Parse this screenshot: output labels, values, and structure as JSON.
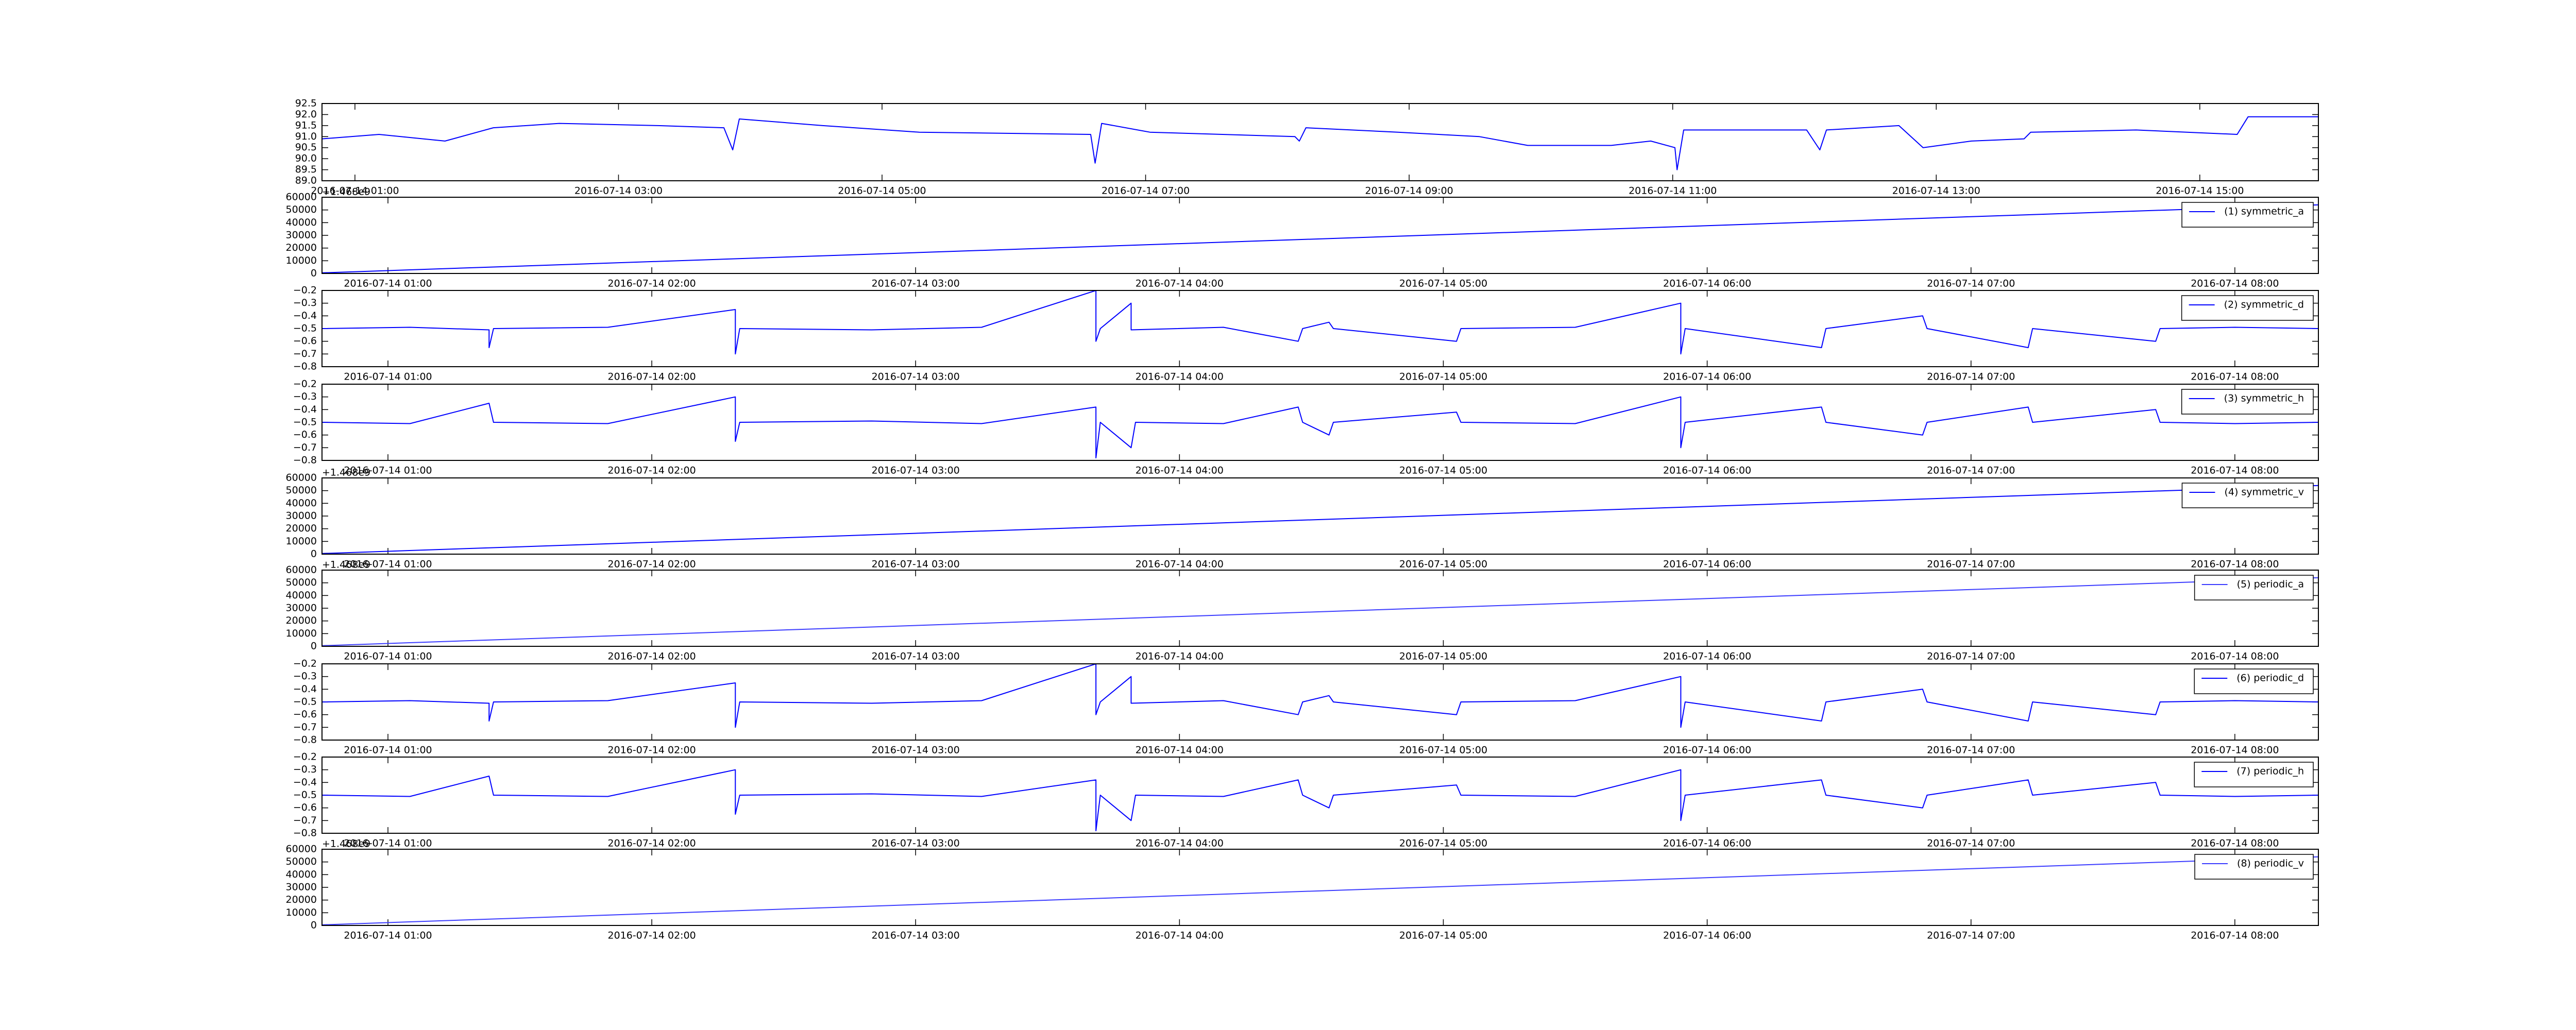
{
  "chart_data": [
    {
      "type": "line",
      "xlim": [
        "2016-07-14 00:45",
        "2016-07-14 15:54"
      ],
      "xticks": [
        "2016-07-14 01:00",
        "2016-07-14 03:00",
        "2016-07-14 05:00",
        "2016-07-14 07:00",
        "2016-07-14 09:00",
        "2016-07-14 11:00",
        "2016-07-14 13:00",
        "2016-07-14 15:00"
      ],
      "ylim": [
        89,
        92.5
      ],
      "yticks": [
        {
          "value": 89,
          "label": "89.0"
        },
        89.5,
        {
          "value": 90,
          "label": "90.0"
        },
        90.5,
        {
          "value": 91,
          "label": "91.0"
        },
        91.5,
        {
          "value": 92,
          "label": "92.0"
        },
        92.5
      ],
      "series": [
        {
          "color": "#0000ff",
          "x": [
            "2016-07-14 00:45",
            "2016-07-14 01:11",
            "2016-07-14 01:41",
            "2016-07-14 02:03",
            "2016-07-14 02:33",
            "2016-07-14 03:18",
            "2016-07-14 03:48",
            "2016-07-14 03:52",
            "2016-07-14 03:55",
            "2016-07-14 04:33",
            "2016-07-14 05:17",
            "2016-07-14 06:35",
            "2016-07-14 06:37",
            "2016-07-14 06:40",
            "2016-07-14 07:02",
            "2016-07-14 08:08",
            "2016-07-14 08:10",
            "2016-07-14 08:13",
            "2016-07-14 08:55",
            "2016-07-14 09:32",
            "2016-07-14 09:54",
            "2016-07-14 10:32",
            "2016-07-14 10:50",
            "2016-07-14 11:01",
            "2016-07-14 11:02",
            "2016-07-14 11:05",
            "2016-07-14 12:01",
            "2016-07-14 12:07",
            "2016-07-14 12:10",
            "2016-07-14 12:43",
            "2016-07-14 12:54",
            "2016-07-14 13:16",
            "2016-07-14 13:40",
            "2016-07-14 13:43",
            "2016-07-14 14:31",
            "2016-07-14 15:17",
            "2016-07-14 15:22",
            "2016-07-14 15:54"
          ],
          "values": [
            90.9,
            91.1,
            90.8,
            91.4,
            91.6,
            91.5,
            91.4,
            90.4,
            91.8,
            91.5,
            91.2,
            91.1,
            89.8,
            91.6,
            91.2,
            91.0,
            90.8,
            91.4,
            91.2,
            91.0,
            90.6,
            90.6,
            90.8,
            90.5,
            89.5,
            91.3,
            91.3,
            90.4,
            91.3,
            91.5,
            90.5,
            90.8,
            90.9,
            91.2,
            91.3,
            91.1,
            91.9,
            91.9
          ]
        }
      ]
    },
    {
      "type": "line",
      "xlim": [
        "2016-07-14 00:45",
        "2016-07-14 08:19"
      ],
      "xticks": [
        "2016-07-14 01:00",
        "2016-07-14 02:00",
        "2016-07-14 03:00",
        "2016-07-14 04:00",
        "2016-07-14 05:00",
        "2016-07-14 06:00",
        "2016-07-14 07:00",
        "2016-07-14 08:00"
      ],
      "ylim": [
        0,
        60000
      ],
      "yticks": [
        0,
        10000,
        20000,
        30000,
        40000,
        50000,
        60000
      ],
      "offset_text": "+1.468e9",
      "legend": "upper right",
      "series": [
        {
          "name": "(1) symmetric_a",
          "color": "#0000ff",
          "x": [
            "2016-07-14 00:45",
            "2016-07-14 08:19"
          ],
          "values": [
            500,
            54000
          ]
        }
      ]
    },
    {
      "type": "line",
      "xlim": [
        "2016-07-14 00:45",
        "2016-07-14 08:19"
      ],
      "xticks": [
        "2016-07-14 01:00",
        "2016-07-14 02:00",
        "2016-07-14 03:00",
        "2016-07-14 04:00",
        "2016-07-14 05:00",
        "2016-07-14 06:00",
        "2016-07-14 07:00",
        "2016-07-14 08:00"
      ],
      "ylim": [
        -0.8,
        -0.2
      ],
      "yticks": [
        {
          "value": -0.8,
          "label": "−0.8"
        },
        {
          "value": -0.7,
          "label": "−0.7"
        },
        {
          "value": -0.6,
          "label": "−0.6"
        },
        {
          "value": -0.5,
          "label": "−0.5"
        },
        {
          "value": -0.4,
          "label": "−0.4"
        },
        {
          "value": -0.3,
          "label": "−0.3"
        },
        {
          "value": -0.2,
          "label": "−0.2"
        }
      ],
      "legend": "upper right",
      "series": [
        {
          "name": "(2) symmetric_d",
          "color": "#0000ff",
          "x": [
            "2016-07-14 00:45",
            "2016-07-14 01:05",
            "2016-07-14 01:23",
            "2016-07-14 01:23",
            "2016-07-14 01:24",
            "2016-07-14 01:50",
            "2016-07-14 02:19",
            "2016-07-14 02:19",
            "2016-07-14 02:20",
            "2016-07-14 02:50",
            "2016-07-14 03:15",
            "2016-07-14 03:41",
            "2016-07-14 03:41",
            "2016-07-14 03:42",
            "2016-07-14 03:49",
            "2016-07-14 03:49",
            "2016-07-14 04:10",
            "2016-07-14 04:27",
            "2016-07-14 04:28",
            "2016-07-14 04:34",
            "2016-07-14 04:35",
            "2016-07-14 05:03",
            "2016-07-14 05:04",
            "2016-07-14 05:30",
            "2016-07-14 05:54",
            "2016-07-14 05:54",
            "2016-07-14 05:55",
            "2016-07-14 06:26",
            "2016-07-14 06:27",
            "2016-07-14 06:49",
            "2016-07-14 06:50",
            "2016-07-14 07:13",
            "2016-07-14 07:14",
            "2016-07-14 07:42",
            "2016-07-14 07:43",
            "2016-07-14 08:00",
            "2016-07-14 08:19"
          ],
          "values": [
            -0.5,
            -0.49,
            -0.51,
            -0.65,
            -0.5,
            -0.49,
            -0.35,
            -0.7,
            -0.5,
            -0.51,
            -0.49,
            -0.2,
            -0.6,
            -0.5,
            -0.3,
            -0.51,
            -0.49,
            -0.6,
            -0.5,
            -0.45,
            -0.5,
            -0.6,
            -0.5,
            -0.49,
            -0.3,
            -0.7,
            -0.5,
            -0.65,
            -0.5,
            -0.4,
            -0.5,
            -0.65,
            -0.5,
            -0.6,
            -0.5,
            -0.49,
            -0.5
          ]
        }
      ]
    },
    {
      "type": "line",
      "xlim": [
        "2016-07-14 00:45",
        "2016-07-14 08:19"
      ],
      "xticks": [
        "2016-07-14 01:00",
        "2016-07-14 02:00",
        "2016-07-14 03:00",
        "2016-07-14 04:00",
        "2016-07-14 05:00",
        "2016-07-14 06:00",
        "2016-07-14 07:00",
        "2016-07-14 08:00"
      ],
      "ylim": [
        -0.8,
        -0.2
      ],
      "yticks": [
        {
          "value": -0.8,
          "label": "−0.8"
        },
        {
          "value": -0.7,
          "label": "−0.7"
        },
        {
          "value": -0.6,
          "label": "−0.6"
        },
        {
          "value": -0.5,
          "label": "−0.5"
        },
        {
          "value": -0.4,
          "label": "−0.4"
        },
        {
          "value": -0.3,
          "label": "−0.3"
        },
        {
          "value": -0.2,
          "label": "−0.2"
        }
      ],
      "legend": "upper right",
      "series": [
        {
          "name": "(3) symmetric_h",
          "color": "#0000ff",
          "x": [
            "2016-07-14 00:45",
            "2016-07-14 01:05",
            "2016-07-14 01:23",
            "2016-07-14 01:24",
            "2016-07-14 01:50",
            "2016-07-14 02:19",
            "2016-07-14 02:19",
            "2016-07-14 02:20",
            "2016-07-14 02:50",
            "2016-07-14 03:15",
            "2016-07-14 03:41",
            "2016-07-14 03:41",
            "2016-07-14 03:42",
            "2016-07-14 03:49",
            "2016-07-14 03:50",
            "2016-07-14 04:10",
            "2016-07-14 04:27",
            "2016-07-14 04:28",
            "2016-07-14 04:34",
            "2016-07-14 04:35",
            "2016-07-14 05:03",
            "2016-07-14 05:04",
            "2016-07-14 05:30",
            "2016-07-14 05:54",
            "2016-07-14 05:54",
            "2016-07-14 05:55",
            "2016-07-14 06:26",
            "2016-07-14 06:27",
            "2016-07-14 06:49",
            "2016-07-14 06:50",
            "2016-07-14 07:13",
            "2016-07-14 07:14",
            "2016-07-14 07:42",
            "2016-07-14 07:43",
            "2016-07-14 08:00",
            "2016-07-14 08:19"
          ],
          "values": [
            -0.5,
            -0.51,
            -0.35,
            -0.5,
            -0.51,
            -0.3,
            -0.65,
            -0.5,
            -0.49,
            -0.51,
            -0.38,
            -0.78,
            -0.5,
            -0.7,
            -0.5,
            -0.51,
            -0.38,
            -0.5,
            -0.6,
            -0.5,
            -0.42,
            -0.5,
            -0.51,
            -0.3,
            -0.7,
            -0.5,
            -0.38,
            -0.5,
            -0.6,
            -0.5,
            -0.38,
            -0.5,
            -0.4,
            -0.5,
            -0.51,
            -0.5
          ]
        }
      ]
    },
    {
      "type": "line",
      "xlim": [
        "2016-07-14 00:45",
        "2016-07-14 08:19"
      ],
      "xticks": [
        "2016-07-14 01:00",
        "2016-07-14 02:00",
        "2016-07-14 03:00",
        "2016-07-14 04:00",
        "2016-07-14 05:00",
        "2016-07-14 06:00",
        "2016-07-14 07:00",
        "2016-07-14 08:00"
      ],
      "ylim": [
        0,
        60000
      ],
      "yticks": [
        0,
        10000,
        20000,
        30000,
        40000,
        50000,
        60000
      ],
      "offset_text": "+1.468e9",
      "legend": "upper right",
      "series": [
        {
          "name": "(4) symmetric_v",
          "color": "#0000ff",
          "x": [
            "2016-07-14 00:45",
            "2016-07-14 08:19"
          ],
          "values": [
            500,
            54000
          ]
        }
      ]
    },
    {
      "type": "line",
      "xlim": [
        "2016-07-14 00:45",
        "2016-07-14 08:19"
      ],
      "xticks": [
        "2016-07-14 01:00",
        "2016-07-14 02:00",
        "2016-07-14 03:00",
        "2016-07-14 04:00",
        "2016-07-14 05:00",
        "2016-07-14 06:00",
        "2016-07-14 07:00",
        "2016-07-14 08:00"
      ],
      "ylim": [
        0,
        60000
      ],
      "yticks": [
        0,
        10000,
        20000,
        30000,
        40000,
        50000,
        60000
      ],
      "offset_text": "+1.468e9",
      "legend": "upper right",
      "series": [
        {
          "name": "(5) periodic_a",
          "color": "#3b3bff",
          "x": [
            "2016-07-14 00:45",
            "2016-07-14 08:19"
          ],
          "values": [
            500,
            54000
          ]
        }
      ]
    },
    {
      "type": "line",
      "xlim": [
        "2016-07-14 00:45",
        "2016-07-14 08:19"
      ],
      "xticks": [
        "2016-07-14 01:00",
        "2016-07-14 02:00",
        "2016-07-14 03:00",
        "2016-07-14 04:00",
        "2016-07-14 05:00",
        "2016-07-14 06:00",
        "2016-07-14 07:00",
        "2016-07-14 08:00"
      ],
      "ylim": [
        -0.8,
        -0.2
      ],
      "yticks": [
        {
          "value": -0.8,
          "label": "−0.8"
        },
        {
          "value": -0.7,
          "label": "−0.7"
        },
        {
          "value": -0.6,
          "label": "−0.6"
        },
        {
          "value": -0.5,
          "label": "−0.5"
        },
        {
          "value": -0.4,
          "label": "−0.4"
        },
        {
          "value": -0.3,
          "label": "−0.3"
        },
        {
          "value": -0.2,
          "label": "−0.2"
        }
      ],
      "legend": "upper right",
      "series": [
        {
          "name": "(6) periodic_d",
          "color": "#0000ff",
          "x": [
            "2016-07-14 00:45",
            "2016-07-14 01:05",
            "2016-07-14 01:23",
            "2016-07-14 01:23",
            "2016-07-14 01:24",
            "2016-07-14 01:50",
            "2016-07-14 02:19",
            "2016-07-14 02:19",
            "2016-07-14 02:20",
            "2016-07-14 02:50",
            "2016-07-14 03:15",
            "2016-07-14 03:41",
            "2016-07-14 03:41",
            "2016-07-14 03:42",
            "2016-07-14 03:49",
            "2016-07-14 03:49",
            "2016-07-14 04:10",
            "2016-07-14 04:27",
            "2016-07-14 04:28",
            "2016-07-14 04:34",
            "2016-07-14 04:35",
            "2016-07-14 05:03",
            "2016-07-14 05:04",
            "2016-07-14 05:30",
            "2016-07-14 05:54",
            "2016-07-14 05:54",
            "2016-07-14 05:55",
            "2016-07-14 06:26",
            "2016-07-14 06:27",
            "2016-07-14 06:49",
            "2016-07-14 06:50",
            "2016-07-14 07:13",
            "2016-07-14 07:14",
            "2016-07-14 07:42",
            "2016-07-14 07:43",
            "2016-07-14 08:00",
            "2016-07-14 08:19"
          ],
          "values": [
            -0.5,
            -0.49,
            -0.51,
            -0.65,
            -0.5,
            -0.49,
            -0.35,
            -0.7,
            -0.5,
            -0.51,
            -0.49,
            -0.2,
            -0.6,
            -0.5,
            -0.3,
            -0.51,
            -0.49,
            -0.6,
            -0.5,
            -0.45,
            -0.5,
            -0.6,
            -0.5,
            -0.49,
            -0.3,
            -0.7,
            -0.5,
            -0.65,
            -0.5,
            -0.4,
            -0.5,
            -0.65,
            -0.5,
            -0.6,
            -0.5,
            -0.49,
            -0.5
          ]
        }
      ]
    },
    {
      "type": "line",
      "xlim": [
        "2016-07-14 00:45",
        "2016-07-14 08:19"
      ],
      "xticks": [
        "2016-07-14 01:00",
        "2016-07-14 02:00",
        "2016-07-14 03:00",
        "2016-07-14 04:00",
        "2016-07-14 05:00",
        "2016-07-14 06:00",
        "2016-07-14 07:00",
        "2016-07-14 08:00"
      ],
      "ylim": [
        -0.8,
        -0.2
      ],
      "yticks": [
        {
          "value": -0.8,
          "label": "−0.8"
        },
        {
          "value": -0.7,
          "label": "−0.7"
        },
        {
          "value": -0.6,
          "label": "−0.6"
        },
        {
          "value": -0.5,
          "label": "−0.5"
        },
        {
          "value": -0.4,
          "label": "−0.4"
        },
        {
          "value": -0.3,
          "label": "−0.3"
        },
        {
          "value": -0.2,
          "label": "−0.2"
        }
      ],
      "legend": "upper right",
      "series": [
        {
          "name": "(7) periodic_h",
          "color": "#0000ff",
          "x": [
            "2016-07-14 00:45",
            "2016-07-14 01:05",
            "2016-07-14 01:23",
            "2016-07-14 01:24",
            "2016-07-14 01:50",
            "2016-07-14 02:19",
            "2016-07-14 02:19",
            "2016-07-14 02:20",
            "2016-07-14 02:50",
            "2016-07-14 03:15",
            "2016-07-14 03:41",
            "2016-07-14 03:41",
            "2016-07-14 03:42",
            "2016-07-14 03:49",
            "2016-07-14 03:50",
            "2016-07-14 04:10",
            "2016-07-14 04:27",
            "2016-07-14 04:28",
            "2016-07-14 04:34",
            "2016-07-14 04:35",
            "2016-07-14 05:03",
            "2016-07-14 05:04",
            "2016-07-14 05:30",
            "2016-07-14 05:54",
            "2016-07-14 05:54",
            "2016-07-14 05:55",
            "2016-07-14 06:26",
            "2016-07-14 06:27",
            "2016-07-14 06:49",
            "2016-07-14 06:50",
            "2016-07-14 07:13",
            "2016-07-14 07:14",
            "2016-07-14 07:42",
            "2016-07-14 07:43",
            "2016-07-14 08:00",
            "2016-07-14 08:19"
          ],
          "values": [
            -0.5,
            -0.51,
            -0.35,
            -0.5,
            -0.51,
            -0.3,
            -0.65,
            -0.5,
            -0.49,
            -0.51,
            -0.38,
            -0.78,
            -0.5,
            -0.7,
            -0.5,
            -0.51,
            -0.38,
            -0.5,
            -0.6,
            -0.5,
            -0.42,
            -0.5,
            -0.51,
            -0.3,
            -0.7,
            -0.5,
            -0.38,
            -0.5,
            -0.6,
            -0.5,
            -0.38,
            -0.5,
            -0.4,
            -0.5,
            -0.51,
            -0.5
          ]
        }
      ]
    },
    {
      "type": "line",
      "xlim": [
        "2016-07-14 00:45",
        "2016-07-14 08:19"
      ],
      "xticks": [
        "2016-07-14 01:00",
        "2016-07-14 02:00",
        "2016-07-14 03:00",
        "2016-07-14 04:00",
        "2016-07-14 05:00",
        "2016-07-14 06:00",
        "2016-07-14 07:00",
        "2016-07-14 08:00"
      ],
      "ylim": [
        0,
        60000
      ],
      "yticks": [
        0,
        10000,
        20000,
        30000,
        40000,
        50000,
        60000
      ],
      "offset_text": "+1.468e9",
      "legend": "upper right",
      "series": [
        {
          "name": "(8) periodic_v",
          "color": "#3b3bff",
          "x": [
            "2016-07-14 00:45",
            "2016-07-14 08:19"
          ],
          "values": [
            500,
            54000
          ]
        }
      ]
    }
  ]
}
